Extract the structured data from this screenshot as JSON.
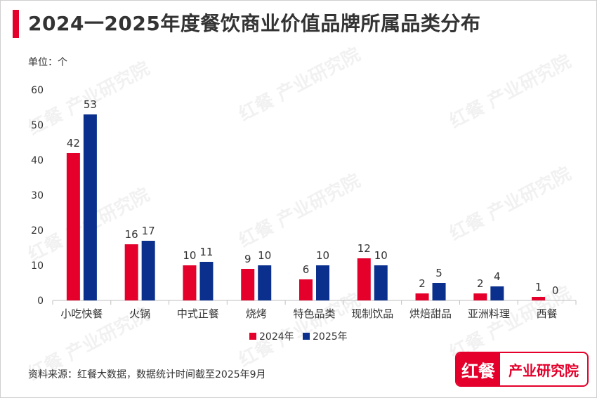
{
  "title": "2024一2025年度餐饮商业价值品牌所属品类分布",
  "unit_label": "单位：个",
  "source": "资料来源：红餐大数据，数据统计时间截至2025年9月",
  "logo": {
    "mark": "红餐",
    "text": "产业研究院",
    "watermark": "红餐 产业研究院"
  },
  "colors": {
    "series_2024": "#e4002b",
    "series_2025": "#0a2f8c",
    "axis": "#bfbfbf",
    "text": "#333333"
  },
  "chart_data": {
    "type": "bar",
    "categories": [
      "小吃快餐",
      "火锅",
      "中式正餐",
      "烧烤",
      "特色品类",
      "现制饮品",
      "烘焙甜品",
      "亚洲料理",
      "西餐"
    ],
    "series": [
      {
        "name": "2024年",
        "values": [
          42,
          16,
          10,
          9,
          6,
          12,
          2,
          2,
          1
        ]
      },
      {
        "name": "2025年",
        "values": [
          53,
          17,
          11,
          10,
          10,
          10,
          5,
          4,
          0
        ]
      }
    ],
    "ylim": [
      0,
      60
    ],
    "yticks": [
      0,
      10,
      20,
      30,
      40,
      50,
      60
    ],
    "legend_position": "bottom",
    "grid": false
  }
}
